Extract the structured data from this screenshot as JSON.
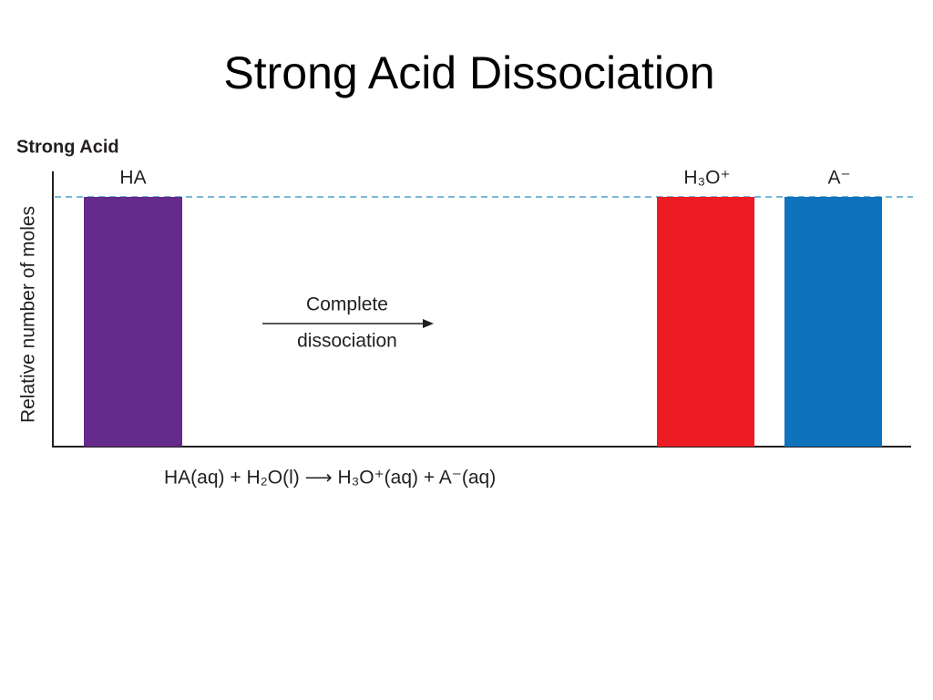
{
  "header": {
    "title": "Strong Acid Dissociation"
  },
  "diagram": {
    "panel_label": "Strong Acid",
    "y_axis_label": "Relative number of moles",
    "bars": [
      {
        "label": "HA"
      },
      {
        "label": "H₃O⁺"
      },
      {
        "label": "A⁻"
      }
    ],
    "arrow_label": [
      "Complete",
      "dissociation"
    ],
    "equation": "HA(aq) + H₂O(l) ⟶ H₃O⁺(aq) + A⁻(aq)"
  }
}
